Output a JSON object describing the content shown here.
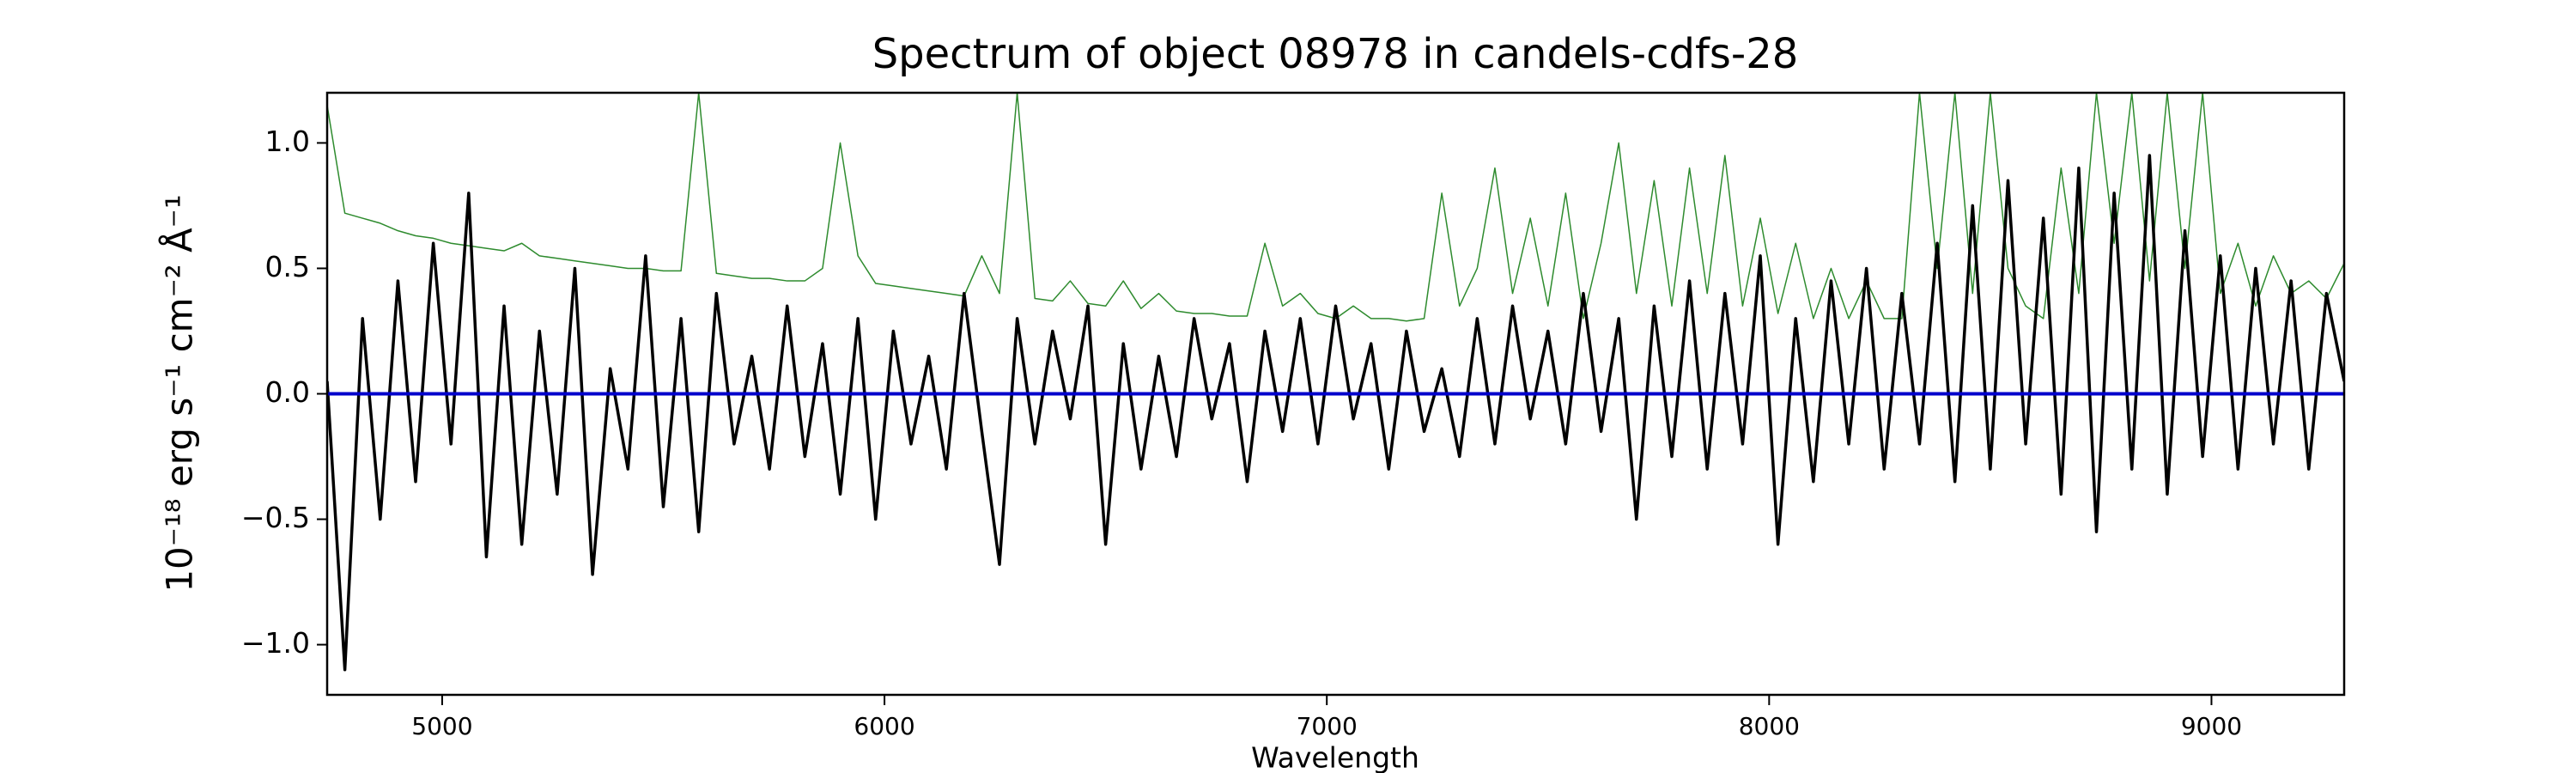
{
  "chart_data": {
    "type": "line",
    "title": "Spectrum of object 08978 in candels-cdfs-28",
    "xlabel": "Wavelength",
    "ylabel": "10⁻¹⁸ erg s⁻¹ cm⁻² Å⁻¹",
    "xlim": [
      4740,
      9300
    ],
    "ylim": [
      -1.2,
      1.2
    ],
    "xticks": [
      5000,
      6000,
      7000,
      8000,
      9000
    ],
    "yticks": [
      {
        "value": -1,
        "label": "−1.0"
      },
      {
        "value": -0.5,
        "label": "−0.5"
      },
      {
        "value": 0,
        "label": "0.0"
      },
      {
        "value": 0.5,
        "label": "0.5"
      },
      {
        "value": 1,
        "label": "1.0"
      }
    ],
    "grid": false,
    "x": [
      4740,
      4780,
      4820,
      4860,
      4900,
      4940,
      4980,
      5020,
      5060,
      5100,
      5140,
      5180,
      5220,
      5260,
      5300,
      5340,
      5380,
      5420,
      5460,
      5500,
      5540,
      5580,
      5620,
      5660,
      5700,
      5740,
      5780,
      5820,
      5860,
      5900,
      5940,
      5980,
      6020,
      6060,
      6100,
      6140,
      6180,
      6220,
      6260,
      6300,
      6340,
      6380,
      6420,
      6460,
      6500,
      6540,
      6580,
      6620,
      6660,
      6700,
      6740,
      6780,
      6820,
      6860,
      6900,
      6940,
      6980,
      7020,
      7060,
      7100,
      7140,
      7180,
      7220,
      7260,
      7300,
      7340,
      7380,
      7420,
      7460,
      7500,
      7540,
      7580,
      7620,
      7660,
      7700,
      7740,
      7780,
      7820,
      7860,
      7900,
      7940,
      7980,
      8020,
      8060,
      8100,
      8140,
      8180,
      8220,
      8260,
      8300,
      8340,
      8380,
      8420,
      8460,
      8500,
      8540,
      8580,
      8620,
      8660,
      8700,
      8740,
      8780,
      8820,
      8860,
      8900,
      8940,
      8980,
      9020,
      9060,
      9100,
      9140,
      9180,
      9220,
      9260,
      9300
    ],
    "series": [
      {
        "color": "#2e8b2e",
        "width": 1.5,
        "values": [
          1.15,
          0.72,
          0.7,
          0.68,
          0.65,
          0.63,
          0.62,
          0.6,
          0.59,
          0.58,
          0.57,
          0.6,
          0.55,
          0.54,
          0.53,
          0.52,
          0.51,
          0.5,
          0.5,
          0.49,
          0.49,
          1.2,
          0.48,
          0.47,
          0.46,
          0.46,
          0.45,
          0.45,
          0.5,
          1.0,
          0.55,
          0.44,
          0.43,
          0.42,
          0.41,
          0.4,
          0.39,
          0.55,
          0.4,
          1.2,
          0.38,
          0.37,
          0.45,
          0.36,
          0.35,
          0.45,
          0.34,
          0.4,
          0.33,
          0.32,
          0.32,
          0.31,
          0.31,
          0.6,
          0.35,
          0.4,
          0.32,
          0.3,
          0.35,
          0.3,
          0.3,
          0.29,
          0.3,
          0.8,
          0.35,
          0.5,
          0.9,
          0.4,
          0.7,
          0.35,
          0.8,
          0.3,
          0.6,
          1.0,
          0.4,
          0.85,
          0.35,
          0.9,
          0.4,
          0.95,
          0.35,
          0.7,
          0.32,
          0.6,
          0.3,
          0.5,
          0.3,
          0.45,
          0.3,
          0.3,
          1.2,
          0.5,
          1.2,
          0.4,
          1.2,
          0.5,
          0.35,
          0.3,
          0.9,
          0.4,
          1.2,
          0.6,
          1.2,
          0.45,
          1.2,
          0.5,
          1.2,
          0.4,
          0.6,
          0.35,
          0.55,
          0.4,
          0.45,
          0.38,
          0.52
        ]
      },
      {
        "color": "#000000",
        "width": 3.5,
        "values": [
          0.05,
          -1.1,
          0.3,
          -0.5,
          0.45,
          -0.35,
          0.6,
          -0.2,
          0.8,
          -0.65,
          0.35,
          -0.6,
          0.25,
          -0.4,
          0.5,
          -0.72,
          0.1,
          -0.3,
          0.55,
          -0.45,
          0.3,
          -0.55,
          0.4,
          -0.2,
          0.15,
          -0.3,
          0.35,
          -0.25,
          0.2,
          -0.4,
          0.3,
          -0.5,
          0.25,
          -0.2,
          0.15,
          -0.3,
          0.4,
          -0.15,
          -0.68,
          0.3,
          -0.2,
          0.25,
          -0.1,
          0.35,
          -0.6,
          0.2,
          -0.3,
          0.15,
          -0.25,
          0.3,
          -0.1,
          0.2,
          -0.35,
          0.25,
          -0.15,
          0.3,
          -0.2,
          0.35,
          -0.1,
          0.2,
          -0.3,
          0.25,
          -0.15,
          0.1,
          -0.25,
          0.3,
          -0.2,
          0.35,
          -0.1,
          0.25,
          -0.2,
          0.4,
          -0.15,
          0.3,
          -0.5,
          0.35,
          -0.25,
          0.45,
          -0.3,
          0.4,
          -0.2,
          0.55,
          -0.6,
          0.3,
          -0.35,
          0.45,
          -0.2,
          0.5,
          -0.3,
          0.4,
          -0.2,
          0.6,
          -0.35,
          0.75,
          -0.3,
          0.85,
          -0.2,
          0.7,
          -0.4,
          0.9,
          -0.55,
          0.8,
          -0.3,
          0.95,
          -0.4,
          0.65,
          -0.25,
          0.55,
          -0.3,
          0.5,
          -0.2,
          0.45,
          -0.3,
          0.4,
          0.05
        ]
      },
      {
        "color": "#0000cc",
        "width": 4,
        "x": [
          4740,
          9300
        ],
        "values": [
          0,
          0
        ]
      }
    ]
  }
}
